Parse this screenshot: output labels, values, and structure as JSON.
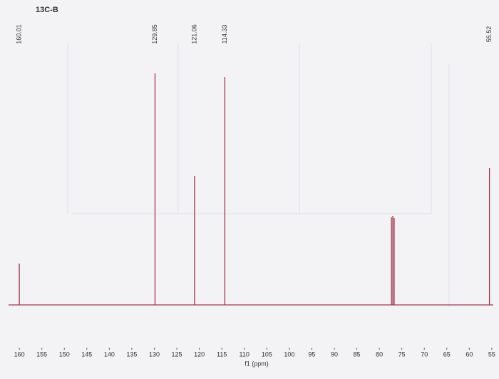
{
  "chart_data": {
    "type": "stem",
    "title": "13C-B",
    "x_label": "f1 (ppm)",
    "x": [
      160.01,
      129.85,
      121.06,
      114.33,
      55.52
    ],
    "values": [
      58,
      325,
      181,
      320,
      192
    ],
    "solvent_x": [
      77.3,
      77.0,
      76.7
    ],
    "solvent_values": [
      123,
      125,
      122
    ],
    "color": "#a3354c",
    "xlim": [
      164.3,
      53.4
    ],
    "ylim": [
      0,
      420
    ],
    "xticks": [
      160,
      155,
      150,
      145,
      140,
      135,
      130,
      125,
      120,
      115,
      110,
      105,
      100,
      95,
      90,
      85,
      80,
      75,
      70,
      65,
      60,
      55
    ]
  }
}
